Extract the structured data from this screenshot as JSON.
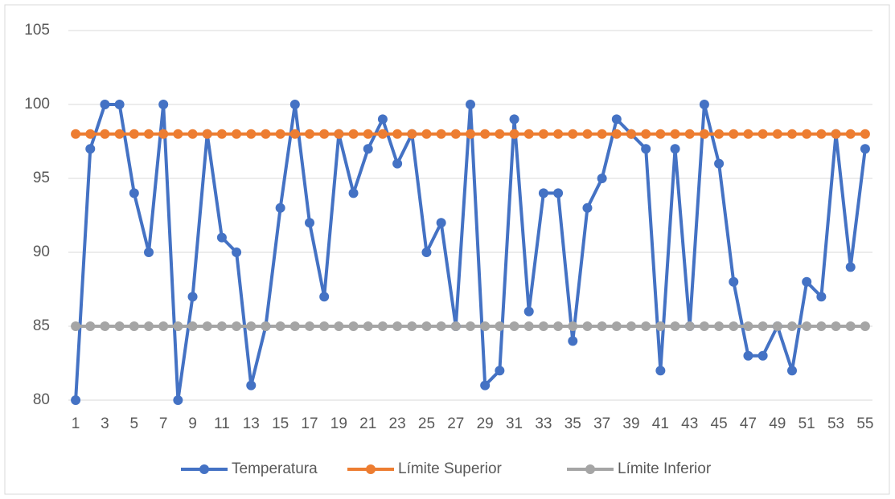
{
  "chart_data": {
    "type": "line",
    "categories": [
      1,
      null,
      3,
      null,
      5,
      null,
      7,
      null,
      9,
      null,
      11,
      null,
      13,
      null,
      15,
      null,
      17,
      null,
      19,
      null,
      21,
      null,
      23,
      null,
      25,
      null,
      27,
      null,
      29,
      null,
      31,
      null,
      33,
      null,
      35,
      null,
      37,
      null,
      39,
      null,
      41,
      null,
      43,
      null,
      45,
      null,
      47,
      null,
      49,
      null,
      51,
      null,
      53,
      null,
      55
    ],
    "series": [
      {
        "name": "Temperatura",
        "color": "#4472c4",
        "values": [
          80,
          97,
          100,
          100,
          94,
          90,
          100,
          80,
          87,
          98,
          91,
          90,
          81,
          85,
          93,
          100,
          92,
          87,
          98,
          94,
          97,
          99,
          96,
          98,
          90,
          92,
          85,
          100,
          81,
          82,
          99,
          86,
          94,
          94,
          84,
          93,
          95,
          99,
          98,
          97,
          82,
          97,
          85,
          100,
          96,
          88,
          83,
          83,
          85,
          82,
          88,
          87,
          98,
          89,
          97
        ]
      },
      {
        "name": "Límite Superior",
        "color": "#ed7d31",
        "values": [
          98,
          98,
          98,
          98,
          98,
          98,
          98,
          98,
          98,
          98,
          98,
          98,
          98,
          98,
          98,
          98,
          98,
          98,
          98,
          98,
          98,
          98,
          98,
          98,
          98,
          98,
          98,
          98,
          98,
          98,
          98,
          98,
          98,
          98,
          98,
          98,
          98,
          98,
          98,
          98,
          98,
          98,
          98,
          98,
          98,
          98,
          98,
          98,
          98,
          98,
          98,
          98,
          98,
          98,
          98
        ]
      },
      {
        "name": "Límite Inferior",
        "color": "#a5a5a5",
        "values": [
          85,
          85,
          85,
          85,
          85,
          85,
          85,
          85,
          85,
          85,
          85,
          85,
          85,
          85,
          85,
          85,
          85,
          85,
          85,
          85,
          85,
          85,
          85,
          85,
          85,
          85,
          85,
          85,
          85,
          85,
          85,
          85,
          85,
          85,
          85,
          85,
          85,
          85,
          85,
          85,
          85,
          85,
          85,
          85,
          85,
          85,
          85,
          85,
          85,
          85,
          85,
          85,
          85,
          85,
          85
        ]
      }
    ],
    "ylim": [
      80,
      105
    ],
    "yticks": [
      80,
      85,
      90,
      95,
      100,
      105
    ],
    "grid": true,
    "legend": "bottom"
  }
}
